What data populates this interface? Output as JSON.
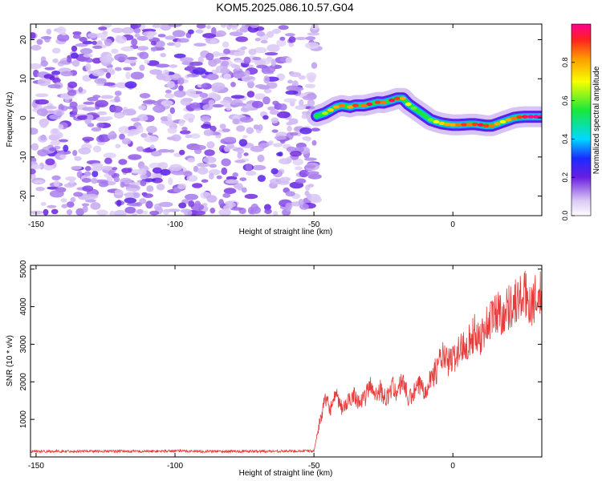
{
  "figure": {
    "title": "KOM5.2025.086.10.57.G04"
  },
  "chart_data": [
    {
      "type": "heatmap",
      "xlabel": "Height of straight line (km)",
      "ylabel": "Frequency (Hz)",
      "xlim": [
        -152,
        32
      ],
      "ylim": [
        -25,
        24
      ],
      "x_ticks": [
        -150,
        -100,
        -50,
        0
      ],
      "y_ticks": [
        -20,
        -10,
        0,
        10,
        20
      ],
      "colorbar": {
        "label": "Normalized spectral amplitude",
        "range": [
          0,
          1
        ],
        "ticks": [
          "0.0",
          "0.2",
          "0.4",
          "0.6",
          "0.8"
        ]
      },
      "noise_region": {
        "x": [
          -152,
          -49
        ],
        "description": "scattered low-amplitude speckle"
      },
      "ridge": {
        "x": [
          -49,
          -46,
          -44,
          -42,
          -40,
          -37,
          -35,
          -32,
          -30,
          -27,
          -25,
          -22,
          -20,
          -18,
          -16,
          -14,
          -12,
          -10,
          -8,
          -6,
          -4,
          -2,
          0,
          2,
          4,
          6,
          8,
          10,
          12,
          14,
          16,
          18,
          20,
          22,
          24,
          26,
          28,
          30,
          32
        ],
        "freq_hz": [
          0.5,
          1.2,
          2.0,
          2.8,
          3.2,
          2.8,
          3.2,
          3.2,
          3.5,
          4.0,
          3.9,
          4.5,
          5.0,
          5.0,
          3.5,
          2.5,
          1.5,
          0.5,
          -0.5,
          -1.0,
          -1.4,
          -1.6,
          -1.8,
          -1.8,
          -1.7,
          -1.6,
          -1.6,
          -1.8,
          -2.0,
          -2.0,
          -1.5,
          -1.0,
          -0.5,
          0.0,
          0.2,
          0.3,
          0.3,
          0.3,
          0.3
        ],
        "amplitude": [
          0.55,
          0.65,
          0.75,
          0.8,
          0.85,
          0.8,
          0.9,
          0.85,
          0.95,
          0.9,
          0.85,
          0.95,
          0.9,
          0.8,
          0.7,
          0.6,
          0.55,
          0.55,
          0.6,
          0.7,
          0.75,
          0.8,
          0.8,
          0.85,
          0.9,
          0.85,
          0.9,
          0.95,
          0.9,
          0.85,
          0.8,
          0.7,
          0.8,
          0.85,
          0.9,
          0.95,
          1.0,
          1.0,
          1.0
        ]
      }
    },
    {
      "type": "line",
      "xlabel": "Height of straight line (km)",
      "ylabel": "SNR (10 * v/v)",
      "xlim": [
        -152,
        32
      ],
      "ylim": [
        0,
        5100
      ],
      "x_ticks": [
        -150,
        -100,
        -50,
        0
      ],
      "y_ticks": [
        1000,
        2000,
        3000,
        4000,
        5000
      ],
      "color": "#e83a3a",
      "series": [
        {
          "x": [
            -152,
            -140,
            -130,
            -120,
            -110,
            -100,
            -90,
            -80,
            -70,
            -60,
            -50,
            -48,
            -46,
            -44,
            -42,
            -40,
            -38,
            -36,
            -34,
            -32,
            -30,
            -28,
            -26,
            -24,
            -22,
            -20,
            -18,
            -16,
            -14,
            -12,
            -10,
            -8,
            -6,
            -4,
            -2,
            0,
            2,
            4,
            6,
            8,
            10,
            12,
            14,
            16,
            18,
            20,
            22,
            24,
            26,
            28,
            30,
            32
          ],
          "y": [
            150,
            150,
            155,
            150,
            150,
            160,
            150,
            150,
            150,
            155,
            160,
            900,
            1500,
            1300,
            1600,
            1300,
            1400,
            1700,
            1500,
            1500,
            1900,
            1700,
            1800,
            1500,
            1900,
            1700,
            2100,
            1500,
            1700,
            1900,
            1800,
            2100,
            2300,
            2700,
            2500,
            2600,
            2800,
            3000,
            3100,
            3300,
            3200,
            3500,
            3700,
            3900,
            3800,
            4000,
            4100,
            4200,
            4300,
            4100,
            4200,
            4300
          ]
        }
      ]
    }
  ]
}
